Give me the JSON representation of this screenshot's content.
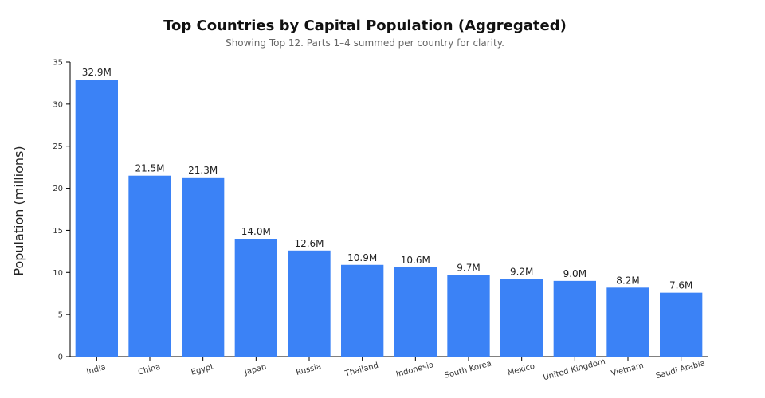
{
  "chart_data": {
    "type": "bar",
    "title": "Top Countries by Capital Population (Aggregated)",
    "subtitle": "Showing Top 12. Parts 1–4 summed per country for clarity.",
    "xlabel": "",
    "ylabel": "Population (millions)",
    "ylim": [
      0,
      35
    ],
    "yticks": [
      0,
      5,
      10,
      15,
      20,
      25,
      30,
      35
    ],
    "grid": false,
    "bar_color": "#3b82f6",
    "categories": [
      "India",
      "China",
      "Egypt",
      "Japan",
      "Russia",
      "Thailand",
      "Indonesia",
      "South Korea",
      "Mexico",
      "United Kingdom",
      "Vietnam",
      "Saudi Arabia"
    ],
    "values": [
      32.9,
      21.5,
      21.3,
      14.0,
      12.6,
      10.9,
      10.6,
      9.7,
      9.2,
      9.0,
      8.2,
      7.6
    ],
    "data_labels": [
      "32.9M",
      "21.5M",
      "21.3M",
      "14.0M",
      "12.6M",
      "10.9M",
      "10.6M",
      "9.7M",
      "9.2M",
      "9.0M",
      "8.2M",
      "7.6M"
    ]
  }
}
